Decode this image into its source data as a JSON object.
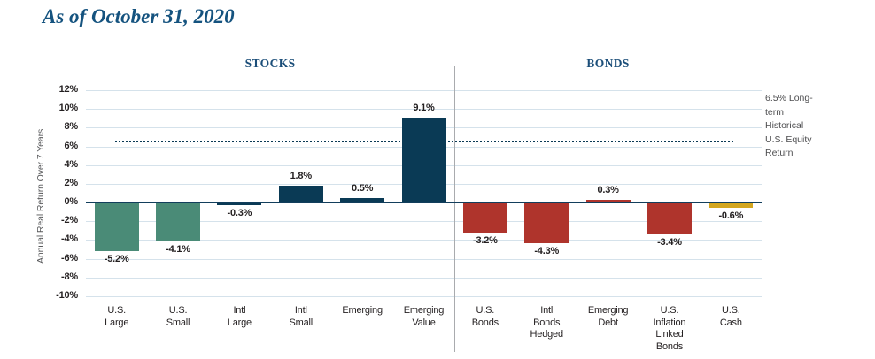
{
  "page": {
    "title": "As of October 31, 2020"
  },
  "chart_data": {
    "type": "bar",
    "title": "As of October 31, 2020",
    "ylabel": "Annual Real Return Over 7 Years",
    "xlabel": "",
    "ylim": [
      -10,
      12
    ],
    "ytick_step": 2,
    "ytick_suffix": "%",
    "grid": true,
    "sections": [
      {
        "label": "STOCKS",
        "bar_count": 6
      },
      {
        "label": "BONDS",
        "bar_count": 5
      }
    ],
    "categories": [
      [
        "U.S.",
        "Large"
      ],
      [
        "U.S.",
        "Small"
      ],
      [
        "Intl",
        "Large"
      ],
      [
        "Intl",
        "Small"
      ],
      [
        "Emerging"
      ],
      [
        "Emerging",
        "Value"
      ],
      [
        "U.S.",
        "Bonds"
      ],
      [
        "Intl",
        "Bonds",
        "Hedged"
      ],
      [
        "Emerging",
        "Debt"
      ],
      [
        "U.S.",
        "Inflation",
        "Linked",
        "Bonds"
      ],
      [
        "U.S.",
        "Cash"
      ]
    ],
    "values": [
      -5.2,
      -4.1,
      -0.3,
      1.8,
      0.5,
      9.1,
      -3.2,
      -4.3,
      0.3,
      -3.4,
      -0.6
    ],
    "value_labels": [
      "-5.2%",
      "-4.1%",
      "-0.3%",
      "1.8%",
      "0.5%",
      "9.1%",
      "-3.2%",
      "-4.3%",
      "0.3%",
      "-3.4%",
      "-0.6%"
    ],
    "bar_colors": [
      "#4A8B77",
      "#4A8B77",
      "#0A3A55",
      "#0A3A55",
      "#0A3A55",
      "#0A3A55",
      "#AF342C",
      "#AF342C",
      "#AF342C",
      "#AF342C",
      "#D3A61F"
    ],
    "colors": {
      "us_stocks": "#4A8B77",
      "intl_em_stocks": "#0A3A55",
      "bonds": "#AF342C",
      "cash": "#D3A61F",
      "gridline": "#D5E2EB",
      "zero_line": "#123E5C",
      "reference_line": "#0B3A55",
      "title": "#15537F",
      "section_header": "#1B4E79"
    },
    "legend_position": "none",
    "reference_line": {
      "value": 6.5,
      "label": "6.5% Long-term Historical U.S. Equity Return"
    }
  }
}
